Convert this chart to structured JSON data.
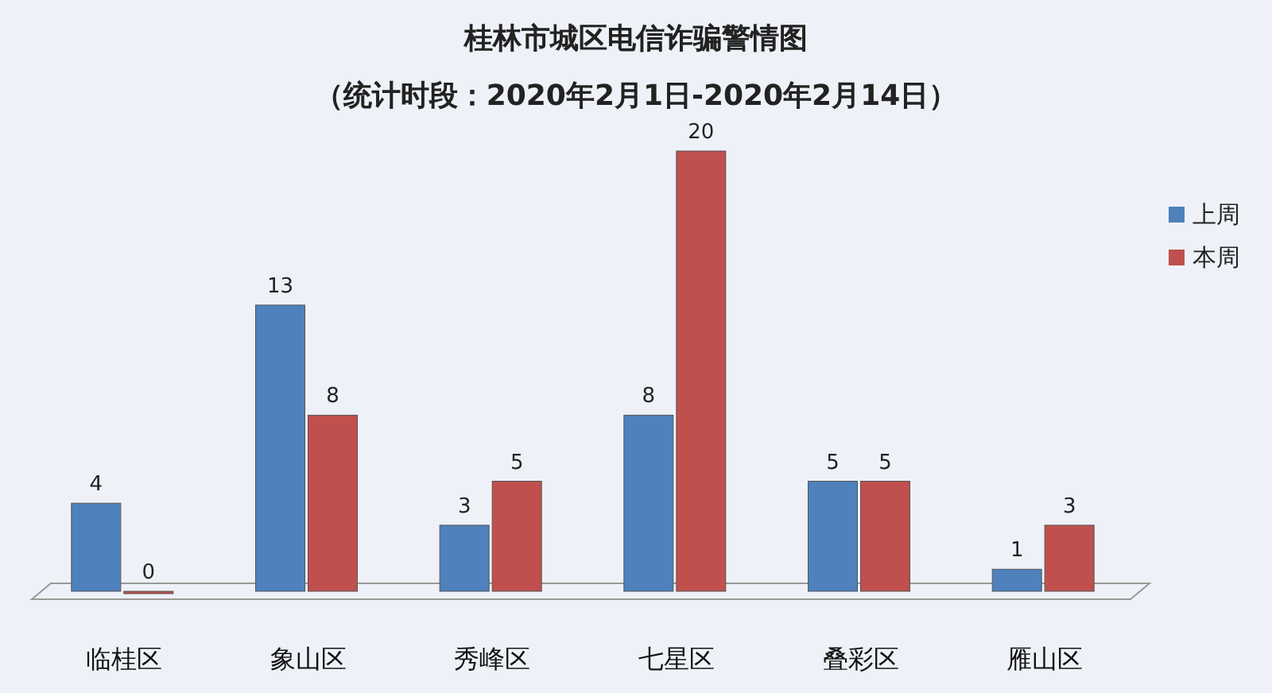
{
  "chart_data": {
    "type": "bar",
    "title": "桂林市城区电信诈骗警情图",
    "subtitle": "（统计时段：2020年2月1日-2020年2月14日）",
    "categories": [
      "临桂区",
      "象山区",
      "秀峰区",
      "七星区",
      "叠彩区",
      "雁山区"
    ],
    "series": [
      {
        "name": "上周",
        "color": "#4f81bd",
        "values": [
          4,
          13,
          3,
          8,
          5,
          1
        ]
      },
      {
        "name": "本周",
        "color": "#c0504d",
        "values": [
          0,
          8,
          5,
          20,
          5,
          3
        ]
      }
    ],
    "data_labels": true,
    "legend": "right",
    "tick_labels": "x",
    "grid": false
  }
}
